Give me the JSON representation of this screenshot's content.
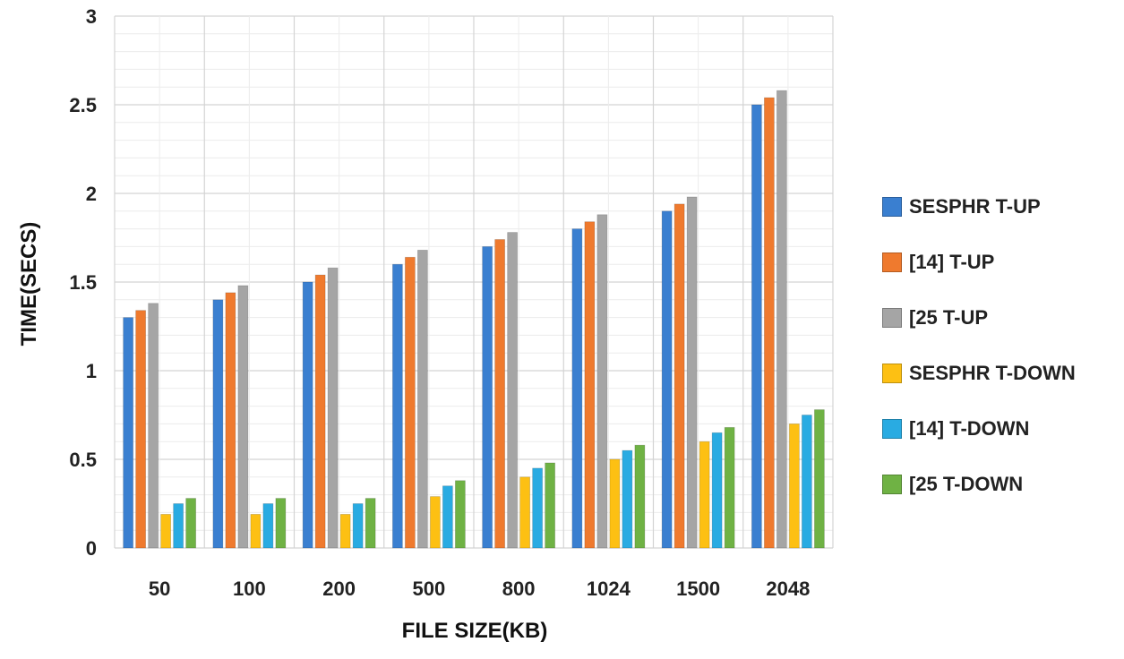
{
  "chart_data": {
    "type": "bar",
    "title": "",
    "xlabel": "FILE SIZE(KB)",
    "ylabel": "TIME(SECS)",
    "ylim": [
      0,
      3
    ],
    "yticks": [
      "0",
      "0.5",
      "1",
      "1.5",
      "2",
      "2.5",
      "3"
    ],
    "grid": true,
    "legend_position": "right",
    "categories": [
      "50",
      "100",
      "200",
      "500",
      "800",
      "1024",
      "1500",
      "2048"
    ],
    "series": [
      {
        "name": "SESPHR T-UP",
        "color": "#3a7fd0",
        "values": [
          1.3,
          1.4,
          1.5,
          1.6,
          1.7,
          1.8,
          1.9,
          2.5
        ]
      },
      {
        "name": "[14] T-UP",
        "color": "#ef7a2e",
        "values": [
          1.34,
          1.44,
          1.54,
          1.64,
          1.74,
          1.84,
          1.94,
          2.54
        ]
      },
      {
        "name": "[25 T-UP",
        "color": "#a5a5a5",
        "values": [
          1.38,
          1.48,
          1.58,
          1.68,
          1.78,
          1.88,
          1.98,
          2.58
        ]
      },
      {
        "name": "SESPHR T-DOWN",
        "color": "#fdc013",
        "values": [
          0.19,
          0.19,
          0.19,
          0.29,
          0.4,
          0.5,
          0.6,
          0.7
        ]
      },
      {
        "name": "[14] T-DOWN",
        "color": "#29abe2",
        "values": [
          0.25,
          0.25,
          0.25,
          0.35,
          0.45,
          0.55,
          0.65,
          0.75
        ]
      },
      {
        "name": "[25 T-DOWN",
        "color": "#6fb244",
        "values": [
          0.28,
          0.28,
          0.28,
          0.38,
          0.48,
          0.58,
          0.68,
          0.78
        ]
      }
    ]
  }
}
